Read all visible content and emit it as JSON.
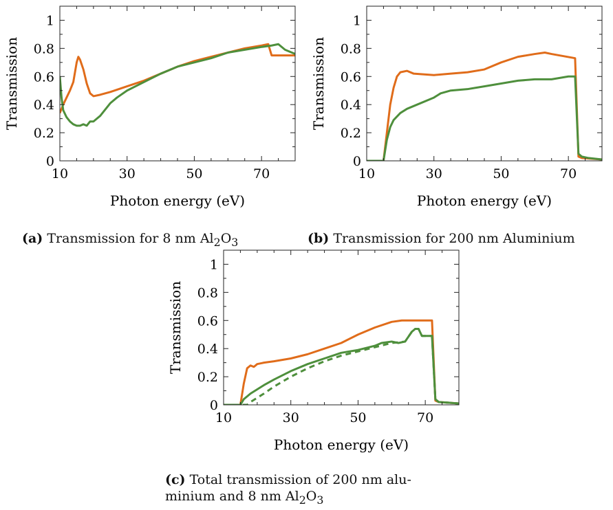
{
  "chart_data": [
    {
      "type": "line",
      "panel_label": "(a)",
      "caption": {
        "pre": "Transmission for 8 nm Al",
        "sub1": "2",
        "mid": "O",
        "sub2": "3",
        "post": ""
      },
      "xlabel": "Photon energy (eV)",
      "ylabel": "Transmission",
      "xlim": [
        10,
        80
      ],
      "ylim": [
        0,
        1.1
      ],
      "xticks": [
        10,
        30,
        50,
        70
      ],
      "yticks": [
        0,
        0.2,
        0.4,
        0.6,
        0.8,
        1
      ],
      "xtick_labels": [
        "10",
        "30",
        "50",
        "70"
      ],
      "ytick_labels": [
        "0",
        "0.2",
        "0.4",
        "0.6",
        "0.8",
        "1"
      ],
      "grid": false,
      "series": [
        {
          "color": "#e06c1a",
          "dashed": false,
          "x": [
            10,
            11,
            12,
            13,
            14,
            15,
            15.5,
            16,
            17,
            18,
            19,
            20,
            22,
            25,
            30,
            35,
            40,
            45,
            50,
            55,
            60,
            65,
            70,
            72,
            73,
            76,
            80
          ],
          "y": [
            0.34,
            0.4,
            0.45,
            0.5,
            0.56,
            0.7,
            0.74,
            0.72,
            0.65,
            0.55,
            0.48,
            0.46,
            0.47,
            0.49,
            0.53,
            0.57,
            0.62,
            0.67,
            0.71,
            0.74,
            0.77,
            0.8,
            0.82,
            0.83,
            0.75,
            0.75,
            0.75
          ]
        },
        {
          "color": "#4e8f3c",
          "dashed": false,
          "x": [
            10,
            10.5,
            11,
            12,
            13,
            14,
            15,
            16,
            17,
            18,
            19,
            20,
            21,
            22,
            23,
            24,
            25,
            27,
            30,
            35,
            40,
            45,
            50,
            55,
            60,
            65,
            70,
            73,
            75,
            77,
            80
          ],
          "y": [
            0.6,
            0.45,
            0.36,
            0.31,
            0.28,
            0.26,
            0.25,
            0.25,
            0.26,
            0.25,
            0.28,
            0.28,
            0.3,
            0.32,
            0.35,
            0.38,
            0.41,
            0.45,
            0.5,
            0.56,
            0.62,
            0.67,
            0.7,
            0.73,
            0.77,
            0.79,
            0.81,
            0.82,
            0.83,
            0.79,
            0.76
          ]
        }
      ]
    },
    {
      "type": "line",
      "panel_label": "(b)",
      "caption": {
        "pre": "Transmission for 200 nm Aluminium"
      },
      "xlabel": "Photon energy (eV)",
      "ylabel": "Transmission",
      "xlim": [
        10,
        80
      ],
      "ylim": [
        0,
        1.1
      ],
      "xticks": [
        10,
        30,
        50,
        70
      ],
      "yticks": [
        0,
        0.2,
        0.4,
        0.6,
        0.8,
        1
      ],
      "xtick_labels": [
        "10",
        "30",
        "50",
        "70"
      ],
      "ytick_labels": [
        "0",
        "0.2",
        "0.4",
        "0.6",
        "0.8",
        "1"
      ],
      "grid": false,
      "series": [
        {
          "color": "#e06c1a",
          "dashed": false,
          "x": [
            10,
            15,
            16,
            17,
            18,
            19,
            20,
            22,
            24,
            30,
            35,
            40,
            45,
            50,
            55,
            60,
            63,
            65,
            72,
            73,
            74,
            80
          ],
          "y": [
            0,
            0,
            0.2,
            0.4,
            0.52,
            0.6,
            0.63,
            0.64,
            0.62,
            0.61,
            0.62,
            0.63,
            0.65,
            0.7,
            0.74,
            0.76,
            0.77,
            0.76,
            0.73,
            0.03,
            0.02,
            0.01
          ]
        },
        {
          "color": "#4e8f3c",
          "dashed": false,
          "x": [
            10,
            15,
            16,
            17,
            18,
            20,
            22,
            25,
            30,
            32,
            35,
            40,
            45,
            50,
            55,
            60,
            65,
            70,
            72,
            73,
            74,
            76,
            80
          ],
          "y": [
            0,
            0,
            0.15,
            0.24,
            0.29,
            0.34,
            0.37,
            0.4,
            0.45,
            0.48,
            0.5,
            0.51,
            0.53,
            0.55,
            0.57,
            0.58,
            0.58,
            0.6,
            0.6,
            0.05,
            0.03,
            0.02,
            0.01
          ]
        }
      ]
    },
    {
      "type": "line",
      "panel_label": "(c)",
      "caption": {
        "pre": "Total transmission of 200 nm alu-",
        "line2": "minium and 8 nm Al",
        "sub1": "2",
        "mid": "O",
        "sub2": "3"
      },
      "xlabel": "Photon energy (eV)",
      "ylabel": "Transmission",
      "xlim": [
        10,
        80
      ],
      "ylim": [
        0,
        1.1
      ],
      "xticks": [
        10,
        30,
        50,
        70
      ],
      "yticks": [
        0,
        0.2,
        0.4,
        0.6,
        0.8,
        1
      ],
      "xtick_labels": [
        "10",
        "30",
        "50",
        "70"
      ],
      "ytick_labels": [
        "0",
        "0.2",
        "0.4",
        "0.6",
        "0.8",
        "1"
      ],
      "grid": false,
      "series": [
        {
          "color": "#e06c1a",
          "dashed": false,
          "x": [
            10,
            15,
            16,
            17,
            18,
            19,
            20,
            22,
            25,
            30,
            35,
            40,
            45,
            50,
            55,
            60,
            63,
            65,
            72,
            73,
            74,
            80
          ],
          "y": [
            0,
            0,
            0.15,
            0.26,
            0.28,
            0.27,
            0.29,
            0.3,
            0.31,
            0.33,
            0.36,
            0.4,
            0.44,
            0.5,
            0.55,
            0.59,
            0.6,
            0.6,
            0.6,
            0.03,
            0.02,
            0.01
          ]
        },
        {
          "color": "#4e8f3c",
          "dashed": false,
          "x": [
            10,
            15,
            16,
            17,
            18,
            20,
            22,
            25,
            30,
            35,
            40,
            45,
            50,
            55,
            57,
            60,
            62,
            64,
            66,
            67,
            68,
            69,
            70,
            72,
            73,
            74,
            80
          ],
          "y": [
            0,
            0,
            0.04,
            0.06,
            0.08,
            0.11,
            0.14,
            0.18,
            0.24,
            0.29,
            0.33,
            0.37,
            0.39,
            0.42,
            0.44,
            0.45,
            0.44,
            0.45,
            0.52,
            0.54,
            0.54,
            0.49,
            0.49,
            0.49,
            0.04,
            0.02,
            0.01
          ]
        },
        {
          "color": "#4e8f3c",
          "dashed": true,
          "x": [
            10,
            17,
            18,
            20,
            22,
            25,
            30,
            35,
            40,
            45,
            50,
            55,
            60,
            64,
            66,
            67,
            68,
            69,
            70,
            72,
            73,
            74,
            80
          ],
          "y": [
            0,
            0,
            0.02,
            0.05,
            0.08,
            0.13,
            0.2,
            0.26,
            0.31,
            0.35,
            0.38,
            0.41,
            0.44,
            0.45,
            0.52,
            0.54,
            0.54,
            0.49,
            0.49,
            0.49,
            0.04,
            0.02,
            0.01
          ]
        }
      ]
    }
  ]
}
